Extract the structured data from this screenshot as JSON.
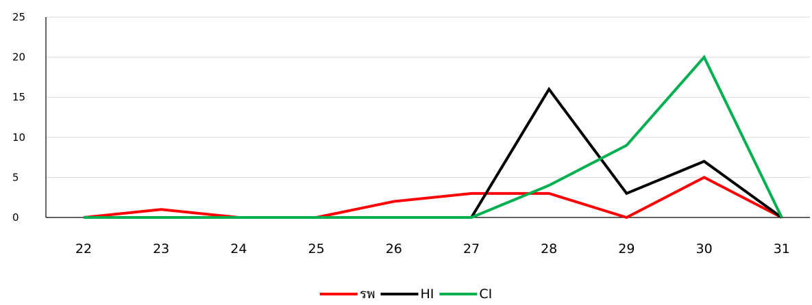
{
  "chart_data": {
    "type": "line",
    "title": "",
    "xlabel": "",
    "ylabel": "",
    "categories": [
      "22",
      "23",
      "24",
      "25",
      "26",
      "27",
      "28",
      "29",
      "30",
      "31"
    ],
    "ylim": [
      0,
      25
    ],
    "yticks": [
      "0",
      "5",
      "10",
      "15",
      "20",
      "25"
    ],
    "grid": true,
    "legend_position": "bottom-center",
    "series": [
      {
        "name": "รพ",
        "color": "#ff0000",
        "values": [
          0,
          1,
          0,
          0,
          2,
          3,
          3,
          0,
          5,
          0
        ]
      },
      {
        "name": "HI",
        "color": "#000000",
        "values": [
          0,
          0,
          0,
          0,
          0,
          0,
          16,
          3,
          7,
          0
        ]
      },
      {
        "name": "CI",
        "color": "#00b050",
        "values": [
          0,
          0,
          0,
          0,
          0,
          0,
          4,
          9,
          20,
          0
        ]
      }
    ]
  }
}
